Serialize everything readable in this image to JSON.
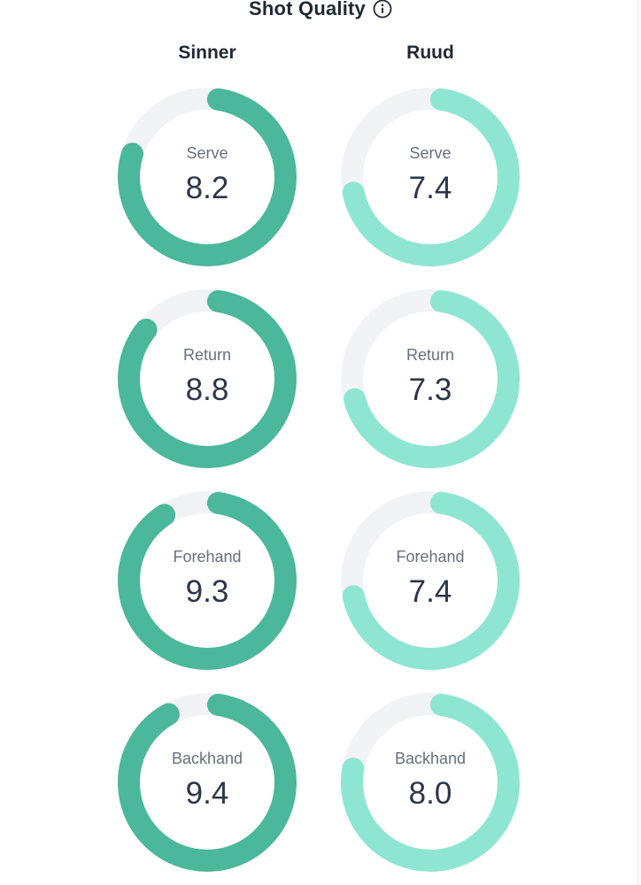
{
  "title": "Shot Quality",
  "colors": {
    "player1": "#4bb79b",
    "player2": "#8ee6d2",
    "track": "#f2f3f7"
  },
  "players": [
    {
      "name": "Sinner",
      "stats": [
        {
          "label": "Serve",
          "value": "8.2"
        },
        {
          "label": "Return",
          "value": "8.8"
        },
        {
          "label": "Forehand",
          "value": "9.3"
        },
        {
          "label": "Backhand",
          "value": "9.4"
        }
      ]
    },
    {
      "name": "Ruud",
      "stats": [
        {
          "label": "Serve",
          "value": "7.4"
        },
        {
          "label": "Return",
          "value": "7.3"
        },
        {
          "label": "Forehand",
          "value": "7.4"
        },
        {
          "label": "Backhand",
          "value": "8.0"
        }
      ]
    }
  ]
}
